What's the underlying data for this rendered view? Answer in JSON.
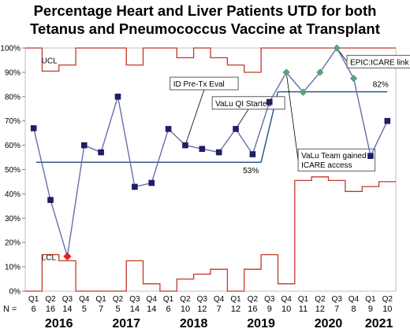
{
  "chart_data": {
    "type": "line",
    "title_lines": [
      "Percentage Heart and Liver Patients UTD for both",
      "Tetanus and Pneumococcus Vaccine at Transplant"
    ],
    "ylim": [
      0,
      100
    ],
    "yticks": [
      "0%",
      "10%",
      "20%",
      "30%",
      "40%",
      "50%",
      "60%",
      "70%",
      "80%",
      "90%",
      "100%"
    ],
    "ytick_values": [
      0,
      10,
      20,
      30,
      40,
      50,
      60,
      70,
      80,
      90,
      100
    ],
    "categories": [
      "Q1",
      "Q2",
      "Q3",
      "Q4",
      "Q1",
      "Q2",
      "Q3",
      "Q4",
      "Q1",
      "Q2",
      "Q3",
      "Q4",
      "Q1",
      "Q2",
      "Q3",
      "Q4",
      "Q1",
      "Q2",
      "Q3",
      "Q4",
      "Q1",
      "Q2"
    ],
    "n_label": "N =",
    "n_values": [
      "6",
      "16",
      "14",
      "5",
      "7",
      "5",
      "14",
      "14",
      "6",
      "10",
      "12",
      "7",
      "12",
      "16",
      "9",
      "10",
      "11",
      "12",
      "7",
      "8",
      "9",
      "10"
    ],
    "years": [
      {
        "label": "2016",
        "span": [
          0,
          3
        ]
      },
      {
        "label": "2017",
        "span": [
          4,
          7
        ]
      },
      {
        "label": "2018",
        "span": [
          8,
          11
        ]
      },
      {
        "label": "2019",
        "span": [
          12,
          15
        ]
      },
      {
        "label": "2020",
        "span": [
          16,
          19
        ]
      },
      {
        "label": "2021",
        "span": [
          20,
          21
        ]
      }
    ],
    "series": [
      {
        "values": [
          67,
          37.5,
          14.3,
          60,
          57.1,
          80,
          42.9,
          44.5,
          66.7,
          60,
          58.5,
          57.1,
          66.7,
          56.3,
          77.8,
          90,
          81.8,
          90,
          100,
          87.5,
          55.6,
          70
        ],
        "colors": {
          "line": "#6b6bb0",
          "marker_default": "#1f1f66",
          "marker_special": "#5aa37a",
          "marker_low": "#e8202a"
        }
      }
    ],
    "special_markers": [
      15,
      16,
      17,
      18,
      19
    ],
    "low_marker": [
      2
    ],
    "center_line": {
      "segments": [
        [
          0,
          13.5,
          53
        ],
        [
          14.5,
          21,
          82
        ]
      ],
      "color": "#2e5a87",
      "labels": [
        "53%",
        "82%"
      ]
    },
    "ucl": {
      "label": "UCL",
      "values": [
        100,
        90.5,
        93,
        100,
        100,
        100,
        93,
        100,
        100,
        96,
        100,
        96,
        93,
        90,
        100,
        100,
        100,
        100,
        100,
        100,
        100,
        100
      ],
      "color": "#c0392b"
    },
    "lcl": {
      "label": "LCL",
      "values": [
        0,
        15,
        12.5,
        0,
        0,
        0,
        12.5,
        3,
        0,
        5,
        7,
        9,
        0,
        9,
        15,
        3,
        45.5,
        47,
        45.5,
        41,
        43,
        45
      ],
      "color": "#c0392b"
    },
    "annotations": [
      {
        "text": "ID Pre-Tx Eval",
        "point_index": 9
      },
      {
        "text": "VaLu QI Started",
        "point_index": 12
      },
      {
        "text": [
          "VaLu Team gained",
          "ICARE access"
        ],
        "point_index": 15
      },
      {
        "text": "EPIC:ICARE link",
        "point_index": 18
      }
    ]
  }
}
